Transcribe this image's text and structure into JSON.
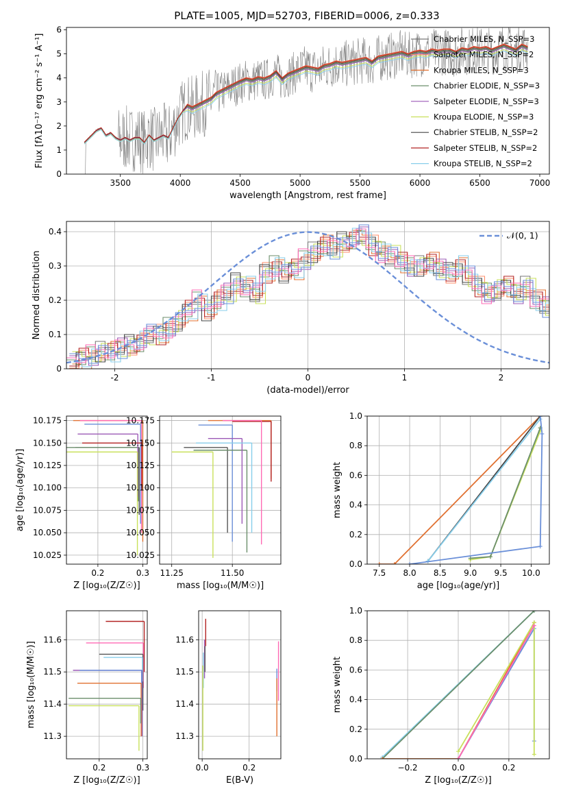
{
  "title": "PLATE=1005, MJD=52703, FIBERID=0006, z=0.333",
  "colors": [
    "#555555",
    "#ff7f50",
    "#e07030",
    "#6b8e6b",
    "#9b59b6",
    "#c8e05a",
    "#444444",
    "#b22222",
    "#87ceeb",
    "#ff69b4",
    "#6a8fd8"
  ],
  "chart_data": [
    {
      "type": "line",
      "xlabel": "wavelength [Angstrom, rest frame]",
      "ylabel": "Flux [f$_\\lambda$10$^{-17}$ erg cm$^{-2}$ s$^{-1}$ A$^{-1}$]",
      "ylabel_display": "Flux [fλ10⁻¹⁷ erg cm⁻² s⁻¹ A⁻¹]",
      "xlim": [
        3050,
        7080
      ],
      "ylim": [
        0,
        6.1
      ],
      "xticks": [
        3500,
        4000,
        4500,
        5000,
        5500,
        6000,
        6500,
        7000
      ],
      "yticks": [
        0,
        1,
        2,
        3,
        4,
        5,
        6
      ],
      "legend_position": "top-right",
      "legend": [
        "Chabrier MILES, N_SSP=3",
        "Salpeter MILES, N_SSP=2",
        "Kroupa MILES, N_SSP=3",
        "Chabrier ELODIE, N_SSP=3",
        "Salpeter ELODIE, N_SSP=3",
        "Kroupa ELODIE, N_SSP=3",
        "Chabrier STELIB, N_SSP=2",
        "Salpeter STELIB, N_SSP=2",
        "Kroupa STELIB, N_SSP=2"
      ],
      "legend_colors": [
        "#777777",
        "#ff8c69",
        "#e07030",
        "#6b8e6b",
        "#9b59b6",
        "#c8e05a",
        "#444444",
        "#b22222",
        "#87ceeb"
      ],
      "model_x": [
        3200,
        3260,
        3300,
        3340,
        3380,
        3420,
        3460,
        3500,
        3540,
        3580,
        3620,
        3660,
        3700,
        3740,
        3780,
        3820,
        3860,
        3900,
        3940,
        3980,
        4020,
        4060,
        4100,
        4140,
        4180,
        4220,
        4260,
        4300,
        4340,
        4380,
        4420,
        4460,
        4500,
        4550,
        4600,
        4650,
        4700,
        4750,
        4800,
        4850,
        4900,
        4950,
        5000,
        5050,
        5100,
        5150,
        5200,
        5250,
        5300,
        5350,
        5400,
        5450,
        5500,
        5550,
        5600,
        5650,
        5700,
        5750,
        5800,
        5850,
        5900,
        5950,
        6000,
        6050,
        6100,
        6150,
        6200,
        6250,
        6300,
        6350,
        6400,
        6450,
        6500,
        6550,
        6600,
        6650,
        6700,
        6750,
        6800,
        6850,
        6900
      ],
      "model_y": [
        1.3,
        1.6,
        1.8,
        1.9,
        1.6,
        1.7,
        1.5,
        1.4,
        1.5,
        1.4,
        1.5,
        1.5,
        1.3,
        1.6,
        1.4,
        1.5,
        1.6,
        1.5,
        1.9,
        2.3,
        2.6,
        2.8,
        2.7,
        2.8,
        2.9,
        3.0,
        3.1,
        3.3,
        3.4,
        3.5,
        3.6,
        3.7,
        3.8,
        3.9,
        3.85,
        3.95,
        3.9,
        4.0,
        4.2,
        3.9,
        4.1,
        4.2,
        4.3,
        4.4,
        4.35,
        4.3,
        4.45,
        4.5,
        4.6,
        4.55,
        4.6,
        4.65,
        4.7,
        4.75,
        4.6,
        4.8,
        4.85,
        4.9,
        4.95,
        5.0,
        4.9,
        5.0,
        5.05,
        5.0,
        5.1,
        5.05,
        5.1,
        5.1,
        5.0,
        5.15,
        5.1,
        5.2,
        5.15,
        5.2,
        5.1,
        5.2,
        5.3,
        5.2,
        5.1,
        5.3,
        5.2
      ],
      "model_offsets": [
        0,
        0.12,
        0.08,
        0.02,
        -0.03,
        -0.12,
        0.05,
        0.1,
        -0.18
      ]
    },
    {
      "type": "line",
      "xlabel": "(data-model)/error",
      "ylabel": "Normed distribution",
      "xlim": [
        -2.5,
        2.5
      ],
      "ylim": [
        0,
        0.43
      ],
      "xticks": [
        -2,
        -1,
        0,
        1,
        2
      ],
      "yticks": [
        0.0,
        0.1,
        0.2,
        0.3,
        0.4
      ],
      "legend": [
        "N(0,1)"
      ],
      "legend_display": "𝒩(0, 1)",
      "legend_position": "top-right",
      "gaussian": {
        "mean": 0,
        "sigma": 1
      },
      "hist_bin_width": 0.1,
      "hist_x_start": -2.5,
      "hist_base": [
        0.02,
        0.03,
        0.04,
        0.05,
        0.05,
        0.06,
        0.07,
        0.08,
        0.1,
        0.1,
        0.12,
        0.14,
        0.17,
        0.2,
        0.17,
        0.2,
        0.22,
        0.25,
        0.24,
        0.22,
        0.28,
        0.3,
        0.28,
        0.29,
        0.32,
        0.34,
        0.36,
        0.35,
        0.37,
        0.38,
        0.39,
        0.36,
        0.34,
        0.33,
        0.31,
        0.3,
        0.3,
        0.31,
        0.29,
        0.28,
        0.3,
        0.27,
        0.24,
        0.22,
        0.23,
        0.24,
        0.22,
        0.24,
        0.2,
        0.18,
        0.2,
        0.21,
        0.22,
        0.2,
        0.18,
        0.19,
        0.17,
        0.18,
        0.16,
        0.14,
        0.15,
        0.14,
        0.12,
        0.1,
        0.08,
        0.09,
        0.07,
        0.08,
        0.06,
        0.05,
        0.04
      ],
      "hist_colors": [
        "#777777",
        "#ff8c69",
        "#e07030",
        "#6b8e6b",
        "#9b59b6",
        "#c8e05a",
        "#444444",
        "#b22222",
        "#87ceeb",
        "#ff69b4",
        "#6a8fd8"
      ]
    },
    {
      "type": "scatter",
      "xlabel": "Z [log₁₀(Z/Z☉)]",
      "ylabel": "age  [log₁₀(age/yr)]",
      "xlim": [
        0.13,
        0.31
      ],
      "ylim": [
        10.015,
        10.18
      ],
      "xticks": [
        0.2,
        0.3
      ],
      "xtick_labels": [
        "0.2",
        "0.3"
      ],
      "yticks": [
        10.025,
        10.05,
        10.075,
        10.1,
        10.125,
        10.15,
        10.175
      ],
      "ytick_labels": [
        "10.025",
        "10.050",
        "10.075",
        "10.100",
        "10.125",
        "10.150",
        "10.175"
      ],
      "bars": [
        {
          "color": "#e07030",
          "x": 0.3,
          "x0": 0.145,
          "y": 10.175,
          "y0": 10.04
        },
        {
          "color": "#ff69b4",
          "x": 0.297,
          "x0": 0.16,
          "y": 10.175,
          "y0": 10.05
        },
        {
          "color": "#6a8fd8",
          "x": 0.295,
          "x0": 0.17,
          "y": 10.171,
          "y0": 10.06
        },
        {
          "color": "#555555",
          "x": 0.292,
          "x0": 0.15,
          "y": 10.145,
          "y0": 10.07
        },
        {
          "color": "#6b8e6b",
          "x": 0.29,
          "x0": 0.13,
          "y": 10.145,
          "y0": 10.085
        },
        {
          "color": "#9b59b6",
          "x": 0.289,
          "x0": 0.155,
          "y": 10.16,
          "y0": 10.09
        },
        {
          "color": "#c8e05a",
          "x": 0.288,
          "x0": 0.13,
          "y": 10.14,
          "y0": 10.025
        },
        {
          "color": "#b22222",
          "x": 0.298,
          "x0": 0.165,
          "y": 10.15,
          "y0": 10.1
        }
      ]
    },
    {
      "type": "scatter",
      "xlabel": "mass [log₁₀(M/M☉)]",
      "ylabel": "",
      "xlim": [
        11.2,
        11.7
      ],
      "ylim": [
        10.015,
        10.18
      ],
      "xticks": [
        11.25,
        11.5
      ],
      "xtick_labels": [
        "11.25",
        "11.50"
      ],
      "yticks": [
        10.025,
        10.05,
        10.075,
        10.1,
        10.125,
        10.15,
        10.175
      ],
      "ytick_labels": [
        "10.025",
        "10.050",
        "10.075",
        "10.100",
        "10.125",
        "10.150",
        "10.175"
      ],
      "bars": [
        {
          "color": "#e07030",
          "x": 11.66,
          "x0": 11.4,
          "y": 10.175,
          "y0": 10.11
        },
        {
          "color": "#b22222",
          "x": 11.66,
          "x0": 11.5,
          "y": 10.174,
          "y0": 10.107
        },
        {
          "color": "#ff69b4",
          "x": 11.62,
          "x0": 11.46,
          "y": 10.175,
          "y0": 10.037
        },
        {
          "color": "#6a8fd8",
          "x": 11.5,
          "x0": 11.36,
          "y": 10.17,
          "y0": 10.04
        },
        {
          "color": "#555555",
          "x": 11.48,
          "x0": 11.3,
          "y": 10.145,
          "y0": 10.05
        },
        {
          "color": "#6b8e6b",
          "x": 11.56,
          "x0": 11.34,
          "y": 10.142,
          "y0": 10.028
        },
        {
          "color": "#9b59b6",
          "x": 11.54,
          "x0": 11.4,
          "y": 10.155,
          "y0": 10.06
        },
        {
          "color": "#c8e05a",
          "x": 11.42,
          "x0": 11.25,
          "y": 10.14,
          "y0": 10.022
        },
        {
          "color": "#87ceeb",
          "x": 11.58,
          "x0": 11.35,
          "y": 10.15,
          "y0": 10.05
        }
      ]
    },
    {
      "type": "line",
      "xlabel": "age  [log₁₀(age/yr)]",
      "ylabel": "mass weight",
      "xlim": [
        7.3,
        10.3
      ],
      "ylim": [
        0,
        1
      ],
      "xticks": [
        7.5,
        8.0,
        8.5,
        9.0,
        9.5,
        10.0
      ],
      "xtick_labels": [
        "7.5",
        "8.0",
        "8.5",
        "9.0",
        "9.5",
        "10.0"
      ],
      "yticks": [
        0,
        0.2,
        0.4,
        0.6,
        0.8,
        1.0
      ],
      "ytick_labels": [
        "0.0",
        "0.2",
        "0.4",
        "0.6",
        "0.8",
        "1.0"
      ],
      "series": [
        {
          "color": "#e07030",
          "x": [
            7.5,
            7.75,
            10.15
          ],
          "y": [
            0,
            0,
            1
          ]
        },
        {
          "color": "#444444",
          "x": [
            8.3,
            10.15
          ],
          "y": [
            0.02,
            1
          ]
        },
        {
          "color": "#87ceeb",
          "x": [
            8.3,
            10.15,
            10.15
          ],
          "y": [
            0.02,
            0.98,
            1
          ]
        },
        {
          "color": "#c8e05a",
          "x": [
            9.0,
            9.33,
            10.15,
            10.15
          ],
          "y": [
            0.03,
            0.05,
            0.9,
            0.92
          ]
        },
        {
          "color": "#6b8e6b",
          "x": [
            9.0,
            9.33,
            10.15
          ],
          "y": [
            0.04,
            0.05,
            0.92
          ]
        },
        {
          "color": "#6a8fd8",
          "x": [
            8.0,
            10.15,
            10.18,
            10.15
          ],
          "y": [
            0,
            0.12,
            0.88,
            1
          ]
        }
      ]
    },
    {
      "type": "scatter",
      "xlabel": "Z [log₁₀(Z/Z☉)]",
      "ylabel": "mass [log₁₀(M/M☉)]",
      "xlim": [
        0.125,
        0.31
      ],
      "ylim": [
        11.23,
        11.69
      ],
      "xticks": [
        0.2,
        0.3
      ],
      "xtick_labels": [
        "0.2",
        "0.3"
      ],
      "yticks": [
        11.3,
        11.4,
        11.5,
        11.6
      ],
      "ytick_labels": [
        "11.3",
        "11.4",
        "11.5",
        "11.6"
      ],
      "bars": [
        {
          "color": "#b22222",
          "x": 0.303,
          "x0": 0.215,
          "y": 11.657,
          "y0": 11.5
        },
        {
          "color": "#ff69b4",
          "x": 0.301,
          "x0": 0.17,
          "y": 11.59,
          "y0": 11.45
        },
        {
          "color": "#555555",
          "x": 0.3,
          "x0": 0.2,
          "y": 11.555,
          "y0": 11.38
        },
        {
          "color": "#87ceeb",
          "x": 0.299,
          "x0": 0.21,
          "y": 11.545,
          "y0": 11.47
        },
        {
          "color": "#9b59b6",
          "x": 0.298,
          "x0": 0.14,
          "y": 11.505,
          "y0": 11.3
        },
        {
          "color": "#6a8fd8",
          "x": 0.297,
          "x0": 0.155,
          "y": 11.505,
          "y0": 11.4
        },
        {
          "color": "#e07030",
          "x": 0.296,
          "x0": 0.15,
          "y": 11.465,
          "y0": 11.3
        },
        {
          "color": "#6b8e6b",
          "x": 0.295,
          "x0": 0.13,
          "y": 11.418,
          "y0": 11.34
        },
        {
          "color": "#c8e05a",
          "x": 0.291,
          "x0": 0.13,
          "y": 11.395,
          "y0": 11.255
        }
      ]
    },
    {
      "type": "scatter",
      "xlabel": "E(B-V)",
      "ylabel": "",
      "xlim": [
        -0.015,
        0.335
      ],
      "ylim": [
        11.23,
        11.69
      ],
      "xticks": [
        0.0,
        0.2
      ],
      "xtick_labels": [
        "0.0",
        "0.2"
      ],
      "yticks": [
        11.3,
        11.4,
        11.5,
        11.6
      ],
      "ytick_labels": [
        "11.3",
        "11.4",
        "11.5",
        "11.6"
      ],
      "bars": [
        {
          "color": "#b22222",
          "x": 0.015,
          "y": 11.665,
          "y0": 11.58
        },
        {
          "color": "#ff69b4",
          "x": 0.325,
          "y": 11.595,
          "y0": 11.41
        },
        {
          "color": "#6a8fd8",
          "x": 0.318,
          "y": 11.51,
          "y0": 11.44
        },
        {
          "color": "#e07030",
          "x": 0.318,
          "y": 11.48,
          "y0": 11.3
        },
        {
          "color": "#87ceeb",
          "x": 0.005,
          "y": 11.56,
          "y0": 11.45
        },
        {
          "color": "#9b59b6",
          "x": 0.01,
          "y": 11.6,
          "y0": 11.48
        },
        {
          "color": "#c8e05a",
          "x": 0.003,
          "y": 11.52,
          "y0": 11.255
        },
        {
          "color": "#555555",
          "x": 0.012,
          "y": 11.58,
          "y0": 11.5
        }
      ]
    },
    {
      "type": "line",
      "xlabel": "Z [log₁₀(Z/Z☉)]",
      "ylabel": "mass weight",
      "xlim": [
        -0.36,
        0.36
      ],
      "ylim": [
        0,
        1
      ],
      "xticks": [
        -0.2,
        0.0,
        0.2
      ],
      "xtick_labels": [
        "−0.2",
        "0.0",
        "0.2"
      ],
      "yticks": [
        0,
        0.2,
        0.4,
        0.6,
        0.8,
        1.0
      ],
      "ytick_labels": [
        "0.0",
        "0.2",
        "0.4",
        "0.6",
        "0.8",
        "1.0"
      ],
      "series": [
        {
          "color": "#87ceeb",
          "x": [
            -0.3,
            0.3
          ],
          "y": [
            0.01,
            1
          ]
        },
        {
          "color": "#6b8e6b",
          "x": [
            -0.3,
            0.3
          ],
          "y": [
            0.0,
            1
          ]
        },
        {
          "color": "#e07030",
          "x": [
            -0.3,
            0.0,
            0.3
          ],
          "y": [
            0,
            0,
            0.92
          ]
        },
        {
          "color": "#6a8fd8",
          "x": [
            0.0,
            0.3,
            0.3
          ],
          "y": [
            0,
            0.88,
            0.12
          ]
        },
        {
          "color": "#c8e05a",
          "x": [
            0.0,
            0.3,
            0.3
          ],
          "y": [
            0.05,
            0.92,
            0.03
          ]
        },
        {
          "color": "#ff69b4",
          "x": [
            0.0,
            0.3
          ],
          "y": [
            0.0,
            0.9
          ]
        }
      ]
    }
  ]
}
